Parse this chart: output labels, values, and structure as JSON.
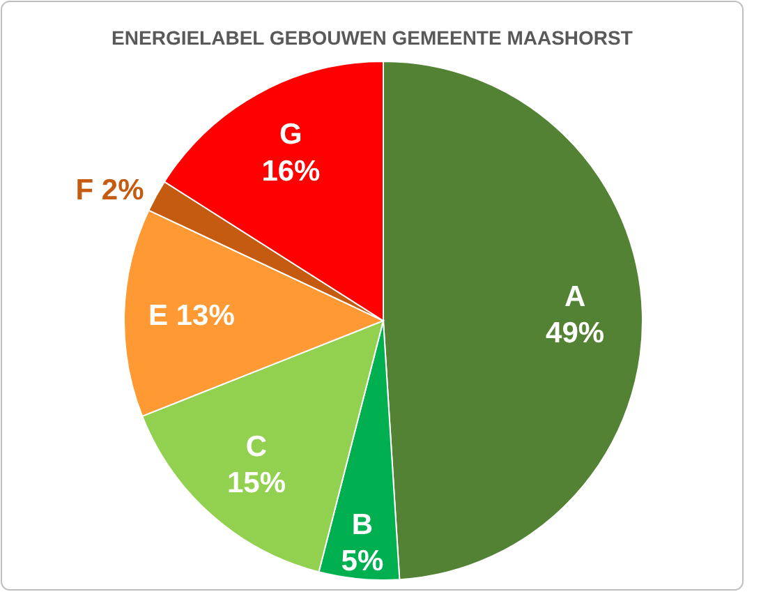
{
  "chart_data": {
    "type": "pie",
    "title": "ENERGIELABEL GEBOUWEN GEMEENTE MAASHORST",
    "categories": [
      "A",
      "B",
      "C",
      "E",
      "F",
      "G"
    ],
    "values": [
      49,
      5,
      15,
      13,
      2,
      16
    ],
    "value_labels": [
      "49%",
      "5%",
      "15%",
      "13%",
      "2%",
      "16%"
    ],
    "colors": [
      "#548235",
      "#00b050",
      "#92d050",
      "#ff9933",
      "#c55a11",
      "#ff0000"
    ],
    "legend": false
  }
}
